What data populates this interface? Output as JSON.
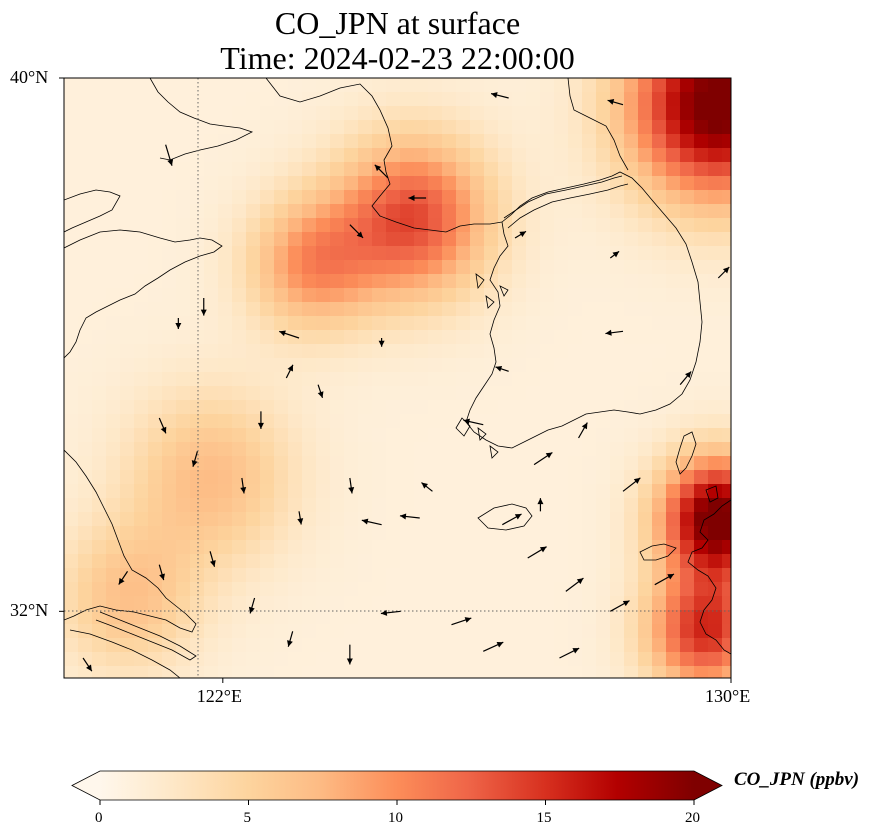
{
  "title": {
    "line1": "CO_JPN at surface",
    "line2": "Time: 2024-02-23 22:00:00"
  },
  "axes": {
    "lon_min": 119.5,
    "lon_max": 130,
    "lat_min": 31,
    "lat_max": 40,
    "x_ticks": [
      {
        "value": 122,
        "label": "122°E"
      },
      {
        "value": 130,
        "label": "130°E"
      }
    ],
    "y_ticks": [
      {
        "value": 40,
        "label": "40°N"
      },
      {
        "value": 32,
        "label": "32°N"
      }
    ],
    "gridlines": "dotted at 122°E and 32°N"
  },
  "colorbar": {
    "label": "CO_JPN (ppbv)",
    "min": 0,
    "max": 20,
    "ticks": [
      "0",
      "5",
      "10",
      "15",
      "20"
    ],
    "extend": "both",
    "colormap": "OrRd"
  },
  "field": {
    "description_hidden": true,
    "hotspots": [
      {
        "lon": 125.0,
        "lat": 37.9,
        "value": 12.5,
        "spread": 1.2
      },
      {
        "lon": 123.4,
        "lat": 37.2,
        "value": 8.5,
        "spread": 1.0
      },
      {
        "lon": 129.8,
        "lat": 39.6,
        "value": 20.0,
        "spread": 1.4
      },
      {
        "lon": 129.8,
        "lat": 33.4,
        "value": 20.0,
        "spread": 0.9
      },
      {
        "lon": 129.6,
        "lat": 31.7,
        "value": 14.0,
        "spread": 0.9
      },
      {
        "lon": 121.8,
        "lat": 34.0,
        "value": 6.0,
        "spread": 1.3
      },
      {
        "lon": 120.5,
        "lat": 32.2,
        "value": 5.5,
        "spread": 1.1
      }
    ]
  },
  "winds": [
    {
      "lon": 121.1,
      "lat": 39.0,
      "u": 0.3,
      "v": -1.0
    },
    {
      "lon": 126.5,
      "lat": 39.7,
      "u": -0.8,
      "v": 0.2
    },
    {
      "lon": 128.3,
      "lat": 39.6,
      "u": -0.7,
      "v": 0.2
    },
    {
      "lon": 124.6,
      "lat": 38.5,
      "u": -0.6,
      "v": 0.6
    },
    {
      "lon": 125.2,
      "lat": 38.2,
      "u": -0.8,
      "v": 0.0
    },
    {
      "lon": 124.0,
      "lat": 37.8,
      "u": 0.6,
      "v": -0.6
    },
    {
      "lon": 126.6,
      "lat": 37.6,
      "u": 0.5,
      "v": 0.3
    },
    {
      "lon": 128.1,
      "lat": 37.3,
      "u": 0.4,
      "v": 0.3
    },
    {
      "lon": 129.8,
      "lat": 37.0,
      "u": 0.5,
      "v": 0.5
    },
    {
      "lon": 121.7,
      "lat": 36.7,
      "u": 0.0,
      "v": -0.8
    },
    {
      "lon": 121.3,
      "lat": 36.4,
      "u": 0.0,
      "v": -0.5
    },
    {
      "lon": 123.2,
      "lat": 36.1,
      "u": -0.9,
      "v": 0.3
    },
    {
      "lon": 124.5,
      "lat": 36.1,
      "u": 0.0,
      "v": -0.4
    },
    {
      "lon": 126.5,
      "lat": 35.6,
      "u": -0.6,
      "v": 0.2
    },
    {
      "lon": 128.3,
      "lat": 36.2,
      "u": -0.8,
      "v": -0.1
    },
    {
      "lon": 129.2,
      "lat": 35.4,
      "u": 0.5,
      "v": 0.6
    },
    {
      "lon": 123.0,
      "lat": 35.5,
      "u": 0.3,
      "v": 0.6
    },
    {
      "lon": 121.0,
      "lat": 34.9,
      "u": 0.3,
      "v": -0.7
    },
    {
      "lon": 122.6,
      "lat": 35.0,
      "u": 0.0,
      "v": -0.8
    },
    {
      "lon": 123.5,
      "lat": 35.4,
      "u": 0.2,
      "v": -0.6
    },
    {
      "lon": 121.6,
      "lat": 34.4,
      "u": -0.2,
      "v": -0.7
    },
    {
      "lon": 122.3,
      "lat": 34.0,
      "u": 0.1,
      "v": -0.7
    },
    {
      "lon": 123.2,
      "lat": 33.5,
      "u": 0.1,
      "v": -0.6
    },
    {
      "lon": 124.0,
      "lat": 34.0,
      "u": 0.1,
      "v": -0.7
    },
    {
      "lon": 124.5,
      "lat": 33.3,
      "u": -0.9,
      "v": 0.2
    },
    {
      "lon": 125.3,
      "lat": 33.8,
      "u": -0.5,
      "v": 0.4
    },
    {
      "lon": 125.1,
      "lat": 33.4,
      "u": -0.9,
      "v": 0.1
    },
    {
      "lon": 126.4,
      "lat": 33.3,
      "u": 0.9,
      "v": 0.5
    },
    {
      "lon": 127.0,
      "lat": 33.5,
      "u": 0.0,
      "v": 0.6
    },
    {
      "lon": 128.3,
      "lat": 33.8,
      "u": 0.9,
      "v": 0.7
    },
    {
      "lon": 126.8,
      "lat": 32.8,
      "u": 1.0,
      "v": 0.6
    },
    {
      "lon": 127.4,
      "lat": 32.3,
      "u": 0.8,
      "v": 0.6
    },
    {
      "lon": 128.1,
      "lat": 32.0,
      "u": 0.9,
      "v": 0.5
    },
    {
      "lon": 121.8,
      "lat": 32.9,
      "u": 0.2,
      "v": -0.7
    },
    {
      "lon": 122.5,
      "lat": 32.2,
      "u": -0.2,
      "v": -0.7
    },
    {
      "lon": 123.1,
      "lat": 31.7,
      "u": -0.2,
      "v": -0.7
    },
    {
      "lon": 124.0,
      "lat": 31.5,
      "u": 0.0,
      "v": -0.9
    },
    {
      "lon": 125.6,
      "lat": 31.8,
      "u": 0.9,
      "v": 0.3
    },
    {
      "lon": 126.1,
      "lat": 31.4,
      "u": 1.1,
      "v": 0.5
    },
    {
      "lon": 127.3,
      "lat": 31.3,
      "u": 1.0,
      "v": 0.5
    },
    {
      "lon": 128.8,
      "lat": 32.4,
      "u": 0.9,
      "v": 0.5
    },
    {
      "lon": 124.8,
      "lat": 32.0,
      "u": -0.9,
      "v": -0.1
    },
    {
      "lon": 120.5,
      "lat": 32.6,
      "u": -0.4,
      "v": -0.6
    },
    {
      "lon": 119.8,
      "lat": 31.3,
      "u": 0.4,
      "v": -0.6
    },
    {
      "lon": 121.0,
      "lat": 32.7,
      "u": 0.2,
      "v": -0.7
    },
    {
      "lon": 126.1,
      "lat": 34.8,
      "u": -0.9,
      "v": 0.2
    },
    {
      "lon": 126.9,
      "lat": 34.2,
      "u": 0.9,
      "v": 0.6
    },
    {
      "lon": 127.6,
      "lat": 34.6,
      "u": 0.4,
      "v": 0.7
    }
  ]
}
